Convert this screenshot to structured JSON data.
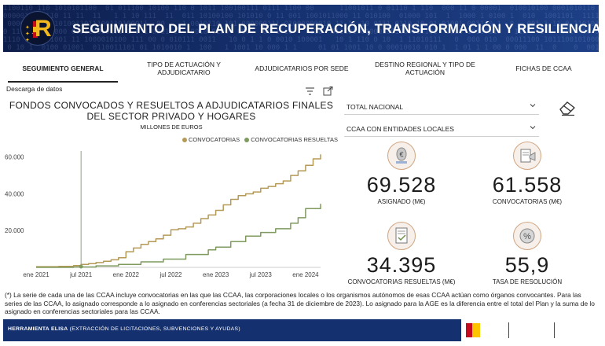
{
  "header": {
    "title": "SEGUIMIENTO DEL PLAN DE RECUPERACIÓN, TRANSFORMACIÓN Y RESILIENCIA",
    "logo_icon": "prtr-logo-icon"
  },
  "tabs": [
    {
      "label": "SEGUIMIENTO GENERAL",
      "active": true
    },
    {
      "label": "TIPO DE ACTUACIÓN Y ADJUDICATARIO",
      "active": false
    },
    {
      "label": "ADJUDICATARIOS POR SEDE",
      "active": false
    },
    {
      "label": "DESTINO REGIONAL Y TIPO DE ACTUACIÓN",
      "active": false
    },
    {
      "label": "FICHAS DE CCAA",
      "active": false
    }
  ],
  "toolbar": {
    "download_label": "Descarga de datos",
    "filter_icon": "filter-icon",
    "expand_icon": "expand-icon"
  },
  "chart_data": {
    "type": "line",
    "title": "FONDOS CONVOCADOS Y RESUELTOS A ADJUDICATARIOS FINALES DEL SECTOR PRIVADO Y HOGARES",
    "subtitle": "MILLONES DE EUROS",
    "y_ticks": [
      "60.000",
      "40.000",
      "20.000"
    ],
    "ylim": [
      0,
      65000
    ],
    "x_ticks": [
      "ene 2021",
      "jul 2021",
      "ene 2022",
      "jul 2022",
      "ene 2023",
      "jul 2023",
      "ene 2024"
    ],
    "grid": false,
    "legend_position": "top-right",
    "colors": {
      "convocatorias": "#b59a57",
      "resueltas": "#7f9a5e"
    },
    "series": [
      {
        "name": "CONVOCATORIAS",
        "x": [
          "2021-01",
          "2021-04",
          "2021-06",
          "2021-07",
          "2021-08",
          "2021-09",
          "2021-10",
          "2021-11",
          "2021-12",
          "2022-01",
          "2022-02",
          "2022-03",
          "2022-04",
          "2022-05",
          "2022-06",
          "2022-07",
          "2022-08",
          "2022-09",
          "2022-10",
          "2022-11",
          "2022-12",
          "2023-01",
          "2023-02",
          "2023-03",
          "2023-04",
          "2023-05",
          "2023-06",
          "2023-07",
          "2023-08",
          "2023-09",
          "2023-10",
          "2023-11",
          "2023-12",
          "2024-01",
          "2024-02",
          "2024-03"
        ],
        "values": [
          400,
          500,
          1000,
          1600,
          2000,
          2600,
          3300,
          4100,
          5200,
          8500,
          10500,
          12500,
          14000,
          15500,
          17500,
          20500,
          21000,
          22000,
          24000,
          26500,
          28500,
          31000,
          34000,
          37000,
          39000,
          40000,
          41000,
          43000,
          44000,
          45500,
          47000,
          50000,
          52500,
          55500,
          59000,
          61500
        ]
      },
      {
        "name": "CONVOCATORIAS RESUELTAS",
        "x": [
          "2021-01",
          "2021-06",
          "2021-09",
          "2021-12",
          "2022-03",
          "2022-06",
          "2022-09",
          "2022-12",
          "2023-01",
          "2023-03",
          "2023-05",
          "2023-07",
          "2023-09",
          "2023-11",
          "2023-12",
          "2024-01",
          "2024-03"
        ],
        "values": [
          0,
          200,
          800,
          1600,
          3000,
          4500,
          7000,
          9500,
          11000,
          14000,
          17000,
          19000,
          21000,
          24000,
          27000,
          32000,
          34500
        ]
      }
    ]
  },
  "filters": {
    "region": "TOTAL NACIONAL",
    "scope": "CCAA CON ENTIDADES LOCALES",
    "clear_icon": "eraser-icon"
  },
  "kpis": [
    {
      "value": "69.528",
      "label": "ASIGNADO (M€)",
      "icon": "euro-coin-icon"
    },
    {
      "value": "61.558",
      "label": "CONVOCATORIAS (M€)",
      "icon": "megaphone-icon"
    },
    {
      "value": "34.395",
      "label": "CONVOCATORIAS RESUELTAS (M€)",
      "icon": "document-check-icon"
    },
    {
      "value": "55,9",
      "label": "TASA DE RESOLUCIÓN",
      "icon": "percent-icon"
    }
  ],
  "footnote": "(*) La serie de cada una de las CCAA incluye convocatorias en las que las CCAA, las corporaciones locales o los organismos autónomos de esas CCAA actúan como órganos convocantes. Para las series de las CCAA, lo asignado corresponde a lo asignado en conferencias sectoriales (a fecha 31 de diciembre de 2023). Lo asignado para la AGE es la diferencia entre el total del Plan y la suma de lo asignado en conferencias sectoriales para las CCAA.",
  "footer": {
    "tool_name": "HERRAMIENTA ELISA",
    "tool_description": "(EXTRACCIÓN DE LICITACIONES, SUBVENCIONES Y AYUDAS)",
    "gov_logo_icon": "gobierno-de-espana-logo-icon"
  }
}
